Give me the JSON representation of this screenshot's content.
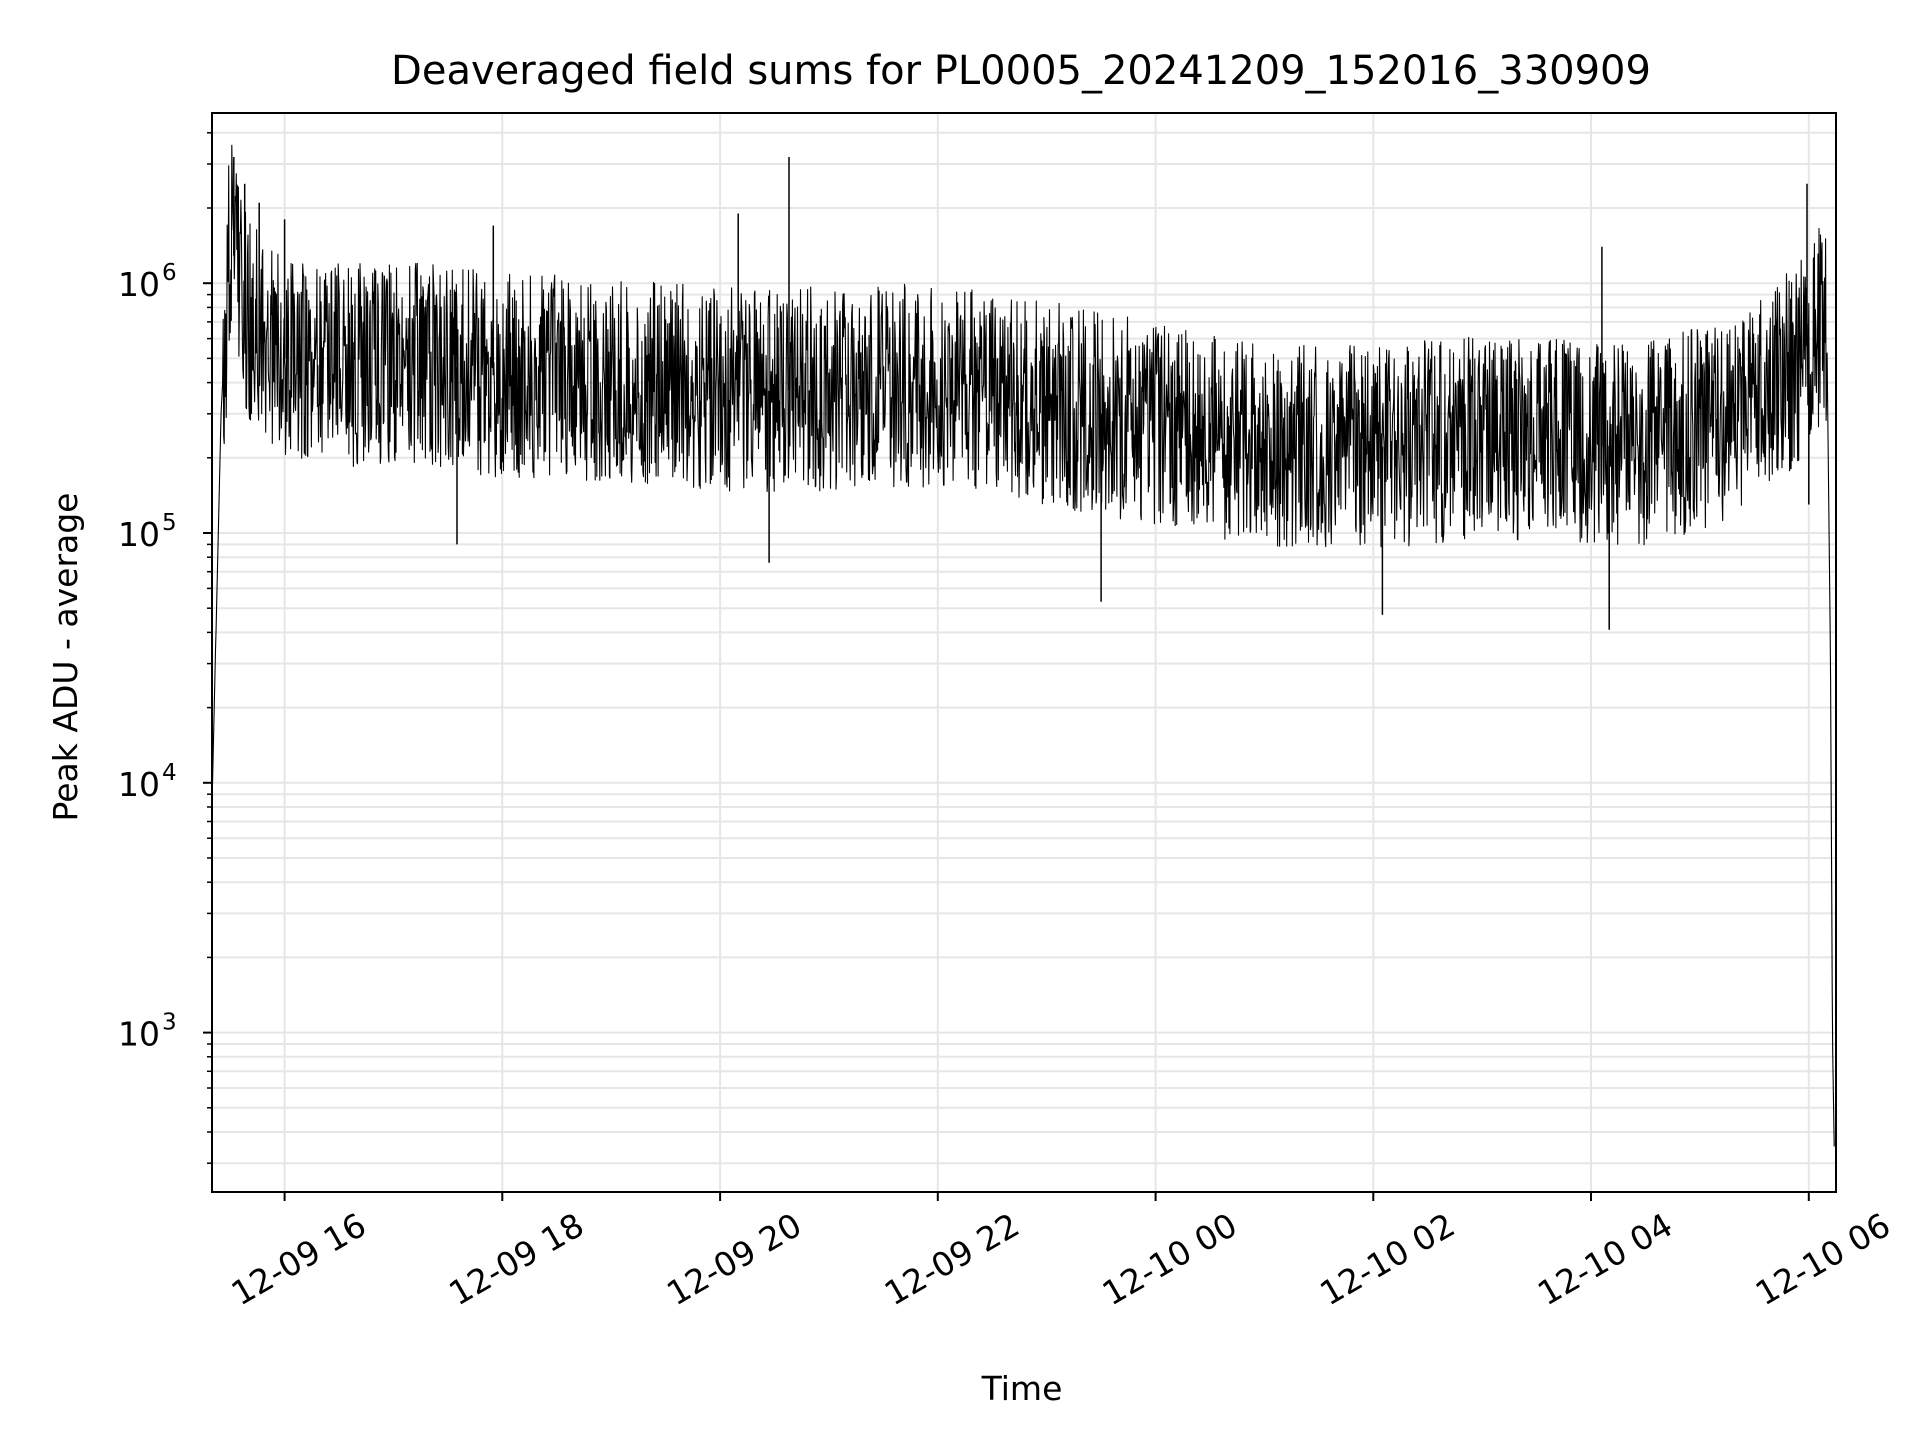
{
  "chart_data": {
    "type": "line",
    "title": "Deaveraged field sums for PL0005_20241209_152016_330909",
    "xlabel": "Time",
    "ylabel": "Peak ADU - average",
    "yscale": "log",
    "ylim": [
      230,
      4800000
    ],
    "xlim": [
      "2024-12-09 15:20",
      "2024-12-10 06:15"
    ],
    "grid": true,
    "grid_minor": true,
    "x_ticks": [
      {
        "t": "2024-12-09 16:00",
        "label": "12-09 16"
      },
      {
        "t": "2024-12-09 18:00",
        "label": "12-09 18"
      },
      {
        "t": "2024-12-09 20:00",
        "label": "12-09 20"
      },
      {
        "t": "2024-12-09 22:00",
        "label": "12-09 22"
      },
      {
        "t": "2024-12-10 00:00",
        "label": "12-10 00"
      },
      {
        "t": "2024-12-10 02:00",
        "label": "12-10 02"
      },
      {
        "t": "2024-12-10 04:00",
        "label": "12-10 04"
      },
      {
        "t": "2024-12-10 06:00",
        "label": "12-10 06"
      }
    ],
    "y_ticks": [
      {
        "value": 1000,
        "base": "10",
        "exp": "3"
      },
      {
        "value": 10000,
        "base": "10",
        "exp": "4"
      },
      {
        "value": 100000,
        "base": "10",
        "exp": "5"
      },
      {
        "value": 1000000,
        "base": "10",
        "exp": "6"
      }
    ],
    "series": [
      {
        "color": "#000000",
        "points": [
          [
            "2024-12-09 15:20",
            8000
          ],
          [
            "2024-12-09 15:22",
            35000
          ],
          [
            "2024-12-09 15:25",
            300000
          ],
          [
            "2024-12-09 15:30",
            1500000
          ],
          [
            "2024-12-09 15:40",
            700000
          ],
          [
            "2024-12-09 16:00",
            500000
          ],
          [
            "2024-12-09 16:30",
            470000
          ],
          [
            "2024-12-09 17:00",
            480000
          ],
          [
            "2024-12-09 17:30",
            470000
          ],
          [
            "2024-12-09 18:00",
            420000
          ],
          [
            "2024-12-09 18:30",
            430000
          ],
          [
            "2024-12-09 19:00",
            400000
          ],
          [
            "2024-12-09 19:30",
            390000
          ],
          [
            "2024-12-09 20:00",
            380000
          ],
          [
            "2024-12-09 20:30",
            370000
          ],
          [
            "2024-12-09 21:00",
            380000
          ],
          [
            "2024-12-09 21:30",
            390000
          ],
          [
            "2024-12-09 22:00",
            390000
          ],
          [
            "2024-12-09 22:30",
            360000
          ],
          [
            "2024-12-09 23:00",
            330000
          ],
          [
            "2024-12-09 23:30",
            300000
          ],
          [
            "2024-12-10 00:00",
            270000
          ],
          [
            "2024-12-10 00:30",
            240000
          ],
          [
            "2024-12-10 01:00",
            230000
          ],
          [
            "2024-12-10 01:30",
            220000
          ],
          [
            "2024-12-10 02:00",
            220000
          ],
          [
            "2024-12-10 02:30",
            230000
          ],
          [
            "2024-12-10 03:00",
            240000
          ],
          [
            "2024-12-10 03:30",
            240000
          ],
          [
            "2024-12-10 04:00",
            220000
          ],
          [
            "2024-12-10 04:30",
            230000
          ],
          [
            "2024-12-10 05:00",
            260000
          ],
          [
            "2024-12-10 05:30",
            320000
          ],
          [
            "2024-12-10 05:50",
            450000
          ],
          [
            "2024-12-10 06:05",
            650000
          ],
          [
            "2024-12-10 06:10",
            600000
          ],
          [
            "2024-12-10 06:12",
            30000
          ],
          [
            "2024-12-10 06:13",
            1000
          ],
          [
            "2024-12-10 06:14",
            350
          ]
        ],
        "spikes": [
          [
            "2024-12-09 15:32",
            3200000
          ],
          [
            "2024-12-09 15:38",
            2500000
          ],
          [
            "2024-12-09 15:46",
            2100000
          ],
          [
            "2024-12-09 16:00",
            1800000
          ],
          [
            "2024-12-09 17:35",
            90000
          ],
          [
            "2024-12-09 17:55",
            1700000
          ],
          [
            "2024-12-09 20:10",
            1900000
          ],
          [
            "2024-12-09 20:27",
            76000
          ],
          [
            "2024-12-09 20:38",
            3200000
          ],
          [
            "2024-12-09 23:30",
            53000
          ],
          [
            "2024-12-10 02:05",
            47000
          ],
          [
            "2024-12-10 04:06",
            1400000
          ],
          [
            "2024-12-10 04:10",
            41000
          ],
          [
            "2024-12-10 05:59",
            2500000
          ],
          [
            "2024-12-10 06:00",
            130000
          ]
        ]
      }
    ]
  }
}
